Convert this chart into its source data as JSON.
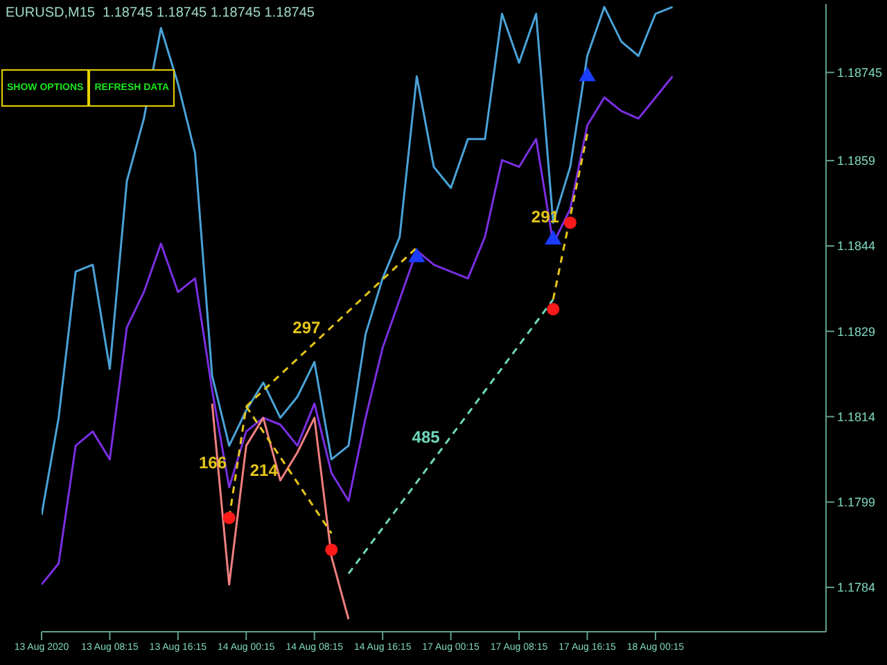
{
  "chart_data": {
    "type": "line",
    "title": "EURUSD,M15  1.18745 1.18745 1.18745 1.18745",
    "categories": [
      "13 Aug 2020",
      null,
      null,
      null,
      "13 Aug 08:15",
      null,
      null,
      null,
      "13 Aug 16:15",
      null,
      null,
      null,
      "14 Aug 00:15",
      null,
      null,
      null,
      "14 Aug 08:15",
      null,
      null,
      null,
      "14 Aug 16:15",
      null,
      null,
      null,
      "17 Aug 00:15",
      null,
      null,
      null,
      "17 Aug 08:15",
      null,
      null,
      null,
      "17 Aug 16:15",
      null,
      null,
      null,
      "18 Aug 00:15",
      null,
      null,
      null,
      null,
      null,
      null,
      null,
      null,
      null,
      null
    ],
    "ylim": [
      1.17762,
      1.18865
    ],
    "yticks": [
      1.1784,
      1.1799,
      1.1814,
      1.1829,
      1.1844,
      1.1859,
      1.18745
    ],
    "marker": "none",
    "line_style": "solid",
    "series": [
      {
        "color": "#4aa3d8",
        "values": [
          1.17967,
          1.18138,
          1.18395,
          1.18407,
          1.18224,
          1.18554,
          1.18664,
          1.18823,
          1.18725,
          1.18603,
          1.18212,
          1.18089,
          1.18151,
          1.182,
          1.18138,
          1.18175,
          1.18236,
          1.18065,
          1.18089,
          1.18285,
          1.18383,
          1.18456,
          1.18738,
          1.18579,
          1.18542,
          1.18628,
          1.18628,
          1.18848,
          1.18762,
          1.18848,
          1.18481,
          1.18579,
          1.18774,
          1.1886,
          1.18799,
          1.18774,
          1.18848,
          1.1886,
          null,
          null,
          null,
          null,
          null,
          null,
          null,
          null,
          null
        ]
      },
      {
        "color": "#7a2fe0",
        "values": [
          1.17845,
          1.17882,
          1.18089,
          1.18114,
          1.18065,
          1.18297,
          1.18359,
          1.18444,
          1.18359,
          1.18383,
          1.18187,
          1.18016,
          1.18114,
          1.18138,
          1.18126,
          1.18089,
          1.18163,
          1.18041,
          1.17992,
          1.18138,
          1.18261,
          1.18346,
          1.18432,
          1.18407,
          1.18395,
          1.18383,
          1.18456,
          1.18591,
          1.18579,
          1.18628,
          1.18444,
          1.18505,
          1.18652,
          1.18701,
          1.18677,
          1.18664,
          1.18701,
          1.18738,
          null,
          null,
          null,
          null,
          null,
          null,
          null,
          null,
          null
        ]
      },
      {
        "color": "#f08080",
        "values": [
          null,
          null,
          null,
          null,
          null,
          null,
          null,
          null,
          null,
          null,
          1.18163,
          1.17845,
          1.18089,
          1.18138,
          1.18028,
          1.18077,
          1.18138,
          1.17894,
          1.17784,
          null,
          null,
          null,
          null,
          null,
          null,
          null,
          null,
          null,
          null,
          null,
          null,
          null,
          null,
          null,
          null,
          null,
          null,
          null,
          null,
          null,
          null,
          null,
          null,
          null,
          null,
          null,
          null
        ]
      },
      {
        "color": "#e6c619",
        "line_style": "dashed",
        "values": [
          null,
          null,
          null,
          null,
          null,
          null,
          null,
          null,
          null,
          null,
          null,
          1.17962,
          1.18158,
          null,
          null,
          null,
          null,
          null,
          null,
          null,
          null,
          null,
          null,
          null,
          null,
          null,
          null,
          null,
          null,
          null,
          null,
          null,
          null,
          null,
          null,
          null,
          null,
          null,
          null,
          null,
          null,
          null,
          null,
          null,
          null,
          null,
          null
        ]
      },
      {
        "color": "#e6c619",
        "line_style": "dashed",
        "values": [
          null,
          null,
          null,
          null,
          null,
          null,
          null,
          null,
          null,
          null,
          null,
          null,
          1.18158,
          null,
          null,
          null,
          null,
          null,
          null,
          null,
          null,
          null,
          1.18437,
          null,
          null,
          null,
          null,
          null,
          null,
          null,
          null,
          null,
          null,
          null,
          null,
          null,
          null,
          null,
          null,
          null,
          null,
          null,
          null,
          null,
          null,
          null,
          null
        ]
      },
      {
        "color": "#e6c619",
        "line_style": "dashed",
        "values": [
          null,
          null,
          null,
          null,
          null,
          null,
          null,
          null,
          null,
          null,
          null,
          null,
          1.18158,
          null,
          null,
          null,
          null,
          1.17935,
          null,
          null,
          null,
          null,
          null,
          null,
          null,
          null,
          null,
          null,
          null,
          null,
          null,
          null,
          null,
          null,
          null,
          null,
          null,
          null,
          null,
          null,
          null,
          null,
          null,
          null,
          null,
          null,
          null
        ]
      },
      {
        "color": "#6fd6b7",
        "line_style": "dashed",
        "values": [
          null,
          null,
          null,
          null,
          null,
          null,
          null,
          null,
          null,
          null,
          null,
          null,
          null,
          null,
          null,
          null,
          null,
          null,
          1.17864,
          null,
          null,
          null,
          null,
          null,
          null,
          null,
          null,
          null,
          null,
          null,
          1.18346,
          null,
          null,
          null,
          null,
          null,
          null,
          null,
          null,
          null,
          null,
          null,
          null,
          null,
          null,
          null,
          null
        ]
      },
      {
        "color": "#e6c619",
        "line_style": "dashed",
        "values": [
          null,
          null,
          null,
          null,
          null,
          null,
          null,
          null,
          null,
          null,
          null,
          null,
          null,
          null,
          null,
          null,
          null,
          null,
          null,
          null,
          null,
          null,
          null,
          null,
          null,
          null,
          null,
          null,
          null,
          null,
          1.18346,
          null,
          1.18637,
          null,
          null,
          null,
          null,
          null,
          null,
          null,
          null,
          null,
          null,
          null,
          null,
          null,
          null
        ]
      },
      {
        "type": "scatter",
        "marker": "circle",
        "color": "#ff1a1a",
        "values": [
          null,
          null,
          null,
          null,
          null,
          null,
          null,
          null,
          null,
          null,
          null,
          1.17962,
          null,
          null,
          null,
          null,
          null,
          1.17906,
          null,
          null,
          null,
          null,
          null,
          null,
          null,
          null,
          null,
          null,
          null,
          null,
          1.18329,
          1.18481,
          null,
          null,
          null,
          null,
          null,
          null,
          null,
          null,
          null,
          null,
          null,
          null,
          null,
          null,
          null
        ]
      },
      {
        "type": "scatter",
        "marker": "triangle",
        "color": "#1a3cff",
        "values": [
          null,
          null,
          null,
          null,
          null,
          null,
          null,
          null,
          null,
          null,
          null,
          null,
          null,
          null,
          null,
          null,
          null,
          null,
          null,
          null,
          null,
          null,
          1.1842,
          null,
          null,
          null,
          null,
          null,
          null,
          null,
          1.18451,
          null,
          1.18738,
          null,
          null,
          null,
          null,
          null,
          null,
          null,
          null,
          null,
          null,
          null,
          null,
          null,
          null
        ]
      }
    ],
    "annotations": [
      "166",
      "297",
      "214",
      "485",
      "291",
      "SHOW OPTIONS",
      "REFRESH DATA"
    ]
  }
}
